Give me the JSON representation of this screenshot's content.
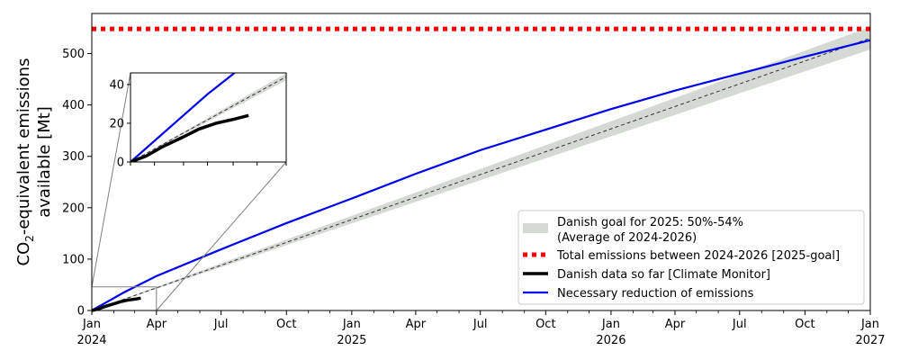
{
  "chart_data": {
    "type": "line",
    "ylabel_line1": "CO$_2$-equivalent emissions",
    "ylabel_line1_parts": [
      "CO",
      "2",
      "-equivalent emissions"
    ],
    "ylabel_line2": "available [Mt]",
    "xlim": [
      "2024-01-01",
      "2027-01-01"
    ],
    "ylim": [
      0,
      578
    ],
    "x_ticks": [
      {
        "date": "2024-01-01",
        "label": "Jan",
        "year": "2024"
      },
      {
        "date": "2024-04-01",
        "label": "Apr",
        "year": ""
      },
      {
        "date": "2024-07-01",
        "label": "Jul",
        "year": ""
      },
      {
        "date": "2024-10-01",
        "label": "Oct",
        "year": ""
      },
      {
        "date": "2025-01-01",
        "label": "Jan",
        "year": "2025"
      },
      {
        "date": "2025-04-01",
        "label": "Apr",
        "year": ""
      },
      {
        "date": "2025-07-01",
        "label": "Jul",
        "year": ""
      },
      {
        "date": "2025-10-01",
        "label": "Oct",
        "year": ""
      },
      {
        "date": "2026-01-01",
        "label": "Jan",
        "year": "2026"
      },
      {
        "date": "2026-04-01",
        "label": "Apr",
        "year": ""
      },
      {
        "date": "2026-07-01",
        "label": "Jul",
        "year": ""
      },
      {
        "date": "2026-10-01",
        "label": "Oct",
        "year": ""
      },
      {
        "date": "2027-01-01",
        "label": "Jan",
        "year": "2027"
      }
    ],
    "y_ticks": [
      0,
      100,
      200,
      300,
      400,
      500
    ],
    "series": [
      {
        "name": "Danish goal for 2025: 50%-54%\n(Average of 2024-2026)",
        "legend_lines": [
          "Danish goal for 2025: 50%-54%",
          "(Average of 2024-2026)"
        ],
        "kind": "band",
        "color": "#d5d9d3",
        "x": [
          "2024-01-01",
          "2027-01-01"
        ],
        "y_low": [
          0,
          508
        ],
        "y_high": [
          0,
          552
        ],
        "midline_color": "#333333"
      },
      {
        "name": "Total emissions between 2024-2026 [2025-goal]",
        "kind": "dotted-hline",
        "color": "#ff0000",
        "x": [
          "2024-01-01",
          "2027-01-01"
        ],
        "y": [
          548,
          548
        ]
      },
      {
        "name": "Danish data so far [Climate Monitor]",
        "kind": "line",
        "color": "#000000",
        "x": [
          "2024-01-01",
          "2024-01-10",
          "2024-01-20",
          "2024-02-01",
          "2024-02-10",
          "2024-02-20",
          "2024-03-01",
          "2024-03-10"
        ],
        "y": [
          0,
          3,
          8,
          13,
          17,
          20,
          22,
          24
        ]
      },
      {
        "name": "Necessary reduction of emissions",
        "kind": "line",
        "color": "#0000ee",
        "x": [
          "2024-01-01",
          "2024-02-15",
          "2024-04-01",
          "2024-07-01",
          "2024-10-01",
          "2025-01-01",
          "2025-04-01",
          "2025-07-01",
          "2025-10-01",
          "2026-01-01",
          "2026-04-01",
          "2026-07-01",
          "2026-10-01",
          "2027-01-01"
        ],
        "y": [
          0,
          35,
          67,
          119,
          170,
          218,
          266,
          312,
          352,
          392,
          428,
          461,
          494,
          526
        ]
      }
    ],
    "inset": {
      "xlim": [
        "2024-01-01",
        "2024-04-01"
      ],
      "ylim": [
        0,
        46
      ],
      "y_ticks": [
        0,
        20,
        40
      ],
      "x_tick_dates": [
        "2024-01-01",
        "2024-01-15",
        "2024-02-01",
        "2024-02-15",
        "2024-03-01",
        "2024-03-15",
        "2024-04-01"
      ]
    },
    "legend_position": "lower-right",
    "grid": false
  }
}
